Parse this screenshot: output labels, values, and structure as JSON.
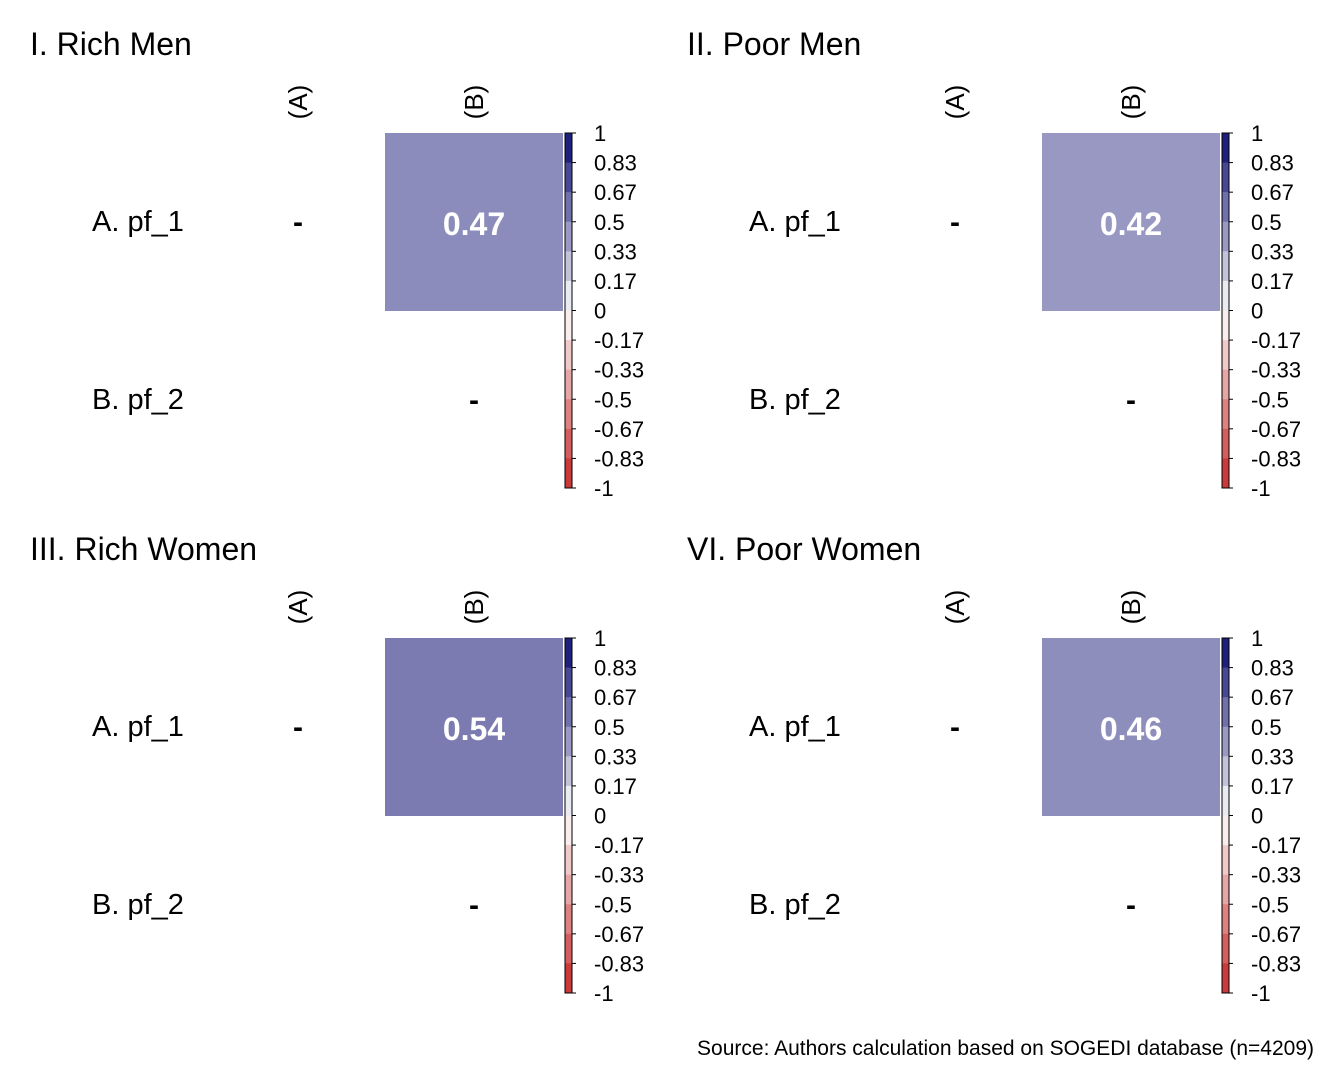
{
  "chart_data": [
    {
      "type": "heatmap",
      "title": "I. Rich Men",
      "columns": [
        "(A)",
        "(B)"
      ],
      "rows": [
        "A. pf_1",
        "B. pf_2"
      ],
      "cells": [
        [
          "-",
          0.47
        ],
        [
          null,
          "-"
        ]
      ],
      "scale": {
        "min": -1,
        "max": 1,
        "ticks": [
          "1",
          "0.83",
          "0.67",
          "0.5",
          "0.33",
          "0.17",
          "0",
          "-0.17",
          "-0.33",
          "-0.5",
          "-0.67",
          "-0.83",
          "-1"
        ],
        "low_color": "#c62828",
        "mid_color": "#ffffff",
        "high_color": "#0a0a70"
      }
    },
    {
      "type": "heatmap",
      "title": "II. Poor Men",
      "columns": [
        "(A)",
        "(B)"
      ],
      "rows": [
        "A. pf_1",
        "B. pf_2"
      ],
      "cells": [
        [
          "-",
          0.42
        ],
        [
          null,
          "-"
        ]
      ],
      "scale": {
        "min": -1,
        "max": 1,
        "ticks": [
          "1",
          "0.83",
          "0.67",
          "0.5",
          "0.33",
          "0.17",
          "0",
          "-0.17",
          "-0.33",
          "-0.5",
          "-0.67",
          "-0.83",
          "-1"
        ],
        "low_color": "#c62828",
        "mid_color": "#ffffff",
        "high_color": "#0a0a70"
      }
    },
    {
      "type": "heatmap",
      "title": "III. Rich Women",
      "columns": [
        "(A)",
        "(B)"
      ],
      "rows": [
        "A. pf_1",
        "B. pf_2"
      ],
      "cells": [
        [
          "-",
          0.54
        ],
        [
          null,
          "-"
        ]
      ],
      "scale": {
        "min": -1,
        "max": 1,
        "ticks": [
          "1",
          "0.83",
          "0.67",
          "0.5",
          "0.33",
          "0.17",
          "0",
          "-0.17",
          "-0.33",
          "-0.5",
          "-0.67",
          "-0.83",
          "-1"
        ],
        "low_color": "#c62828",
        "mid_color": "#ffffff",
        "high_color": "#0a0a70"
      }
    },
    {
      "type": "heatmap",
      "title": "VI. Poor Women",
      "columns": [
        "(A)",
        "(B)"
      ],
      "rows": [
        "A. pf_1",
        "B. pf_2"
      ],
      "cells": [
        [
          "-",
          0.46
        ],
        [
          null,
          "-"
        ]
      ],
      "scale": {
        "min": -1,
        "max": 1,
        "ticks": [
          "1",
          "0.83",
          "0.67",
          "0.5",
          "0.33",
          "0.17",
          "0",
          "-0.17",
          "-0.33",
          "-0.5",
          "-0.67",
          "-0.83",
          "-1"
        ],
        "low_color": "#c62828",
        "mid_color": "#ffffff",
        "high_color": "#0a0a70"
      }
    }
  ],
  "source_note": "Source: Authors calculation based on SOGEDI database (n=4209)"
}
